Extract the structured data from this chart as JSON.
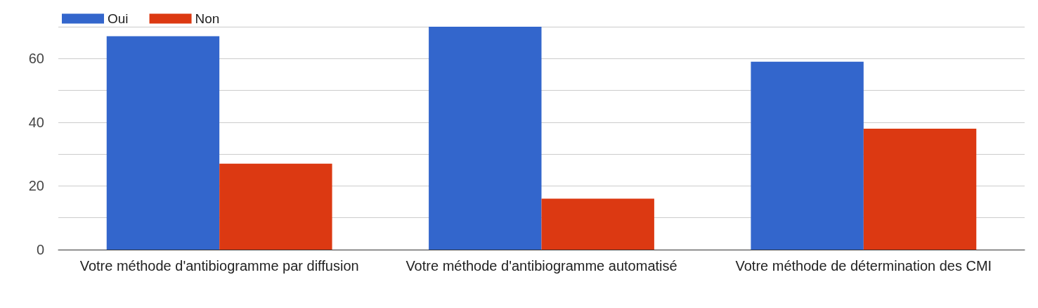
{
  "chart_data": {
    "type": "bar",
    "categories": [
      "Votre méthode d'antibiogramme par diffusion",
      "Votre méthode d'antibiogramme automatisé",
      "Votre méthode de détermination des CMI"
    ],
    "series": [
      {
        "name": "Oui",
        "color": "#3366cc",
        "values": [
          67,
          70,
          59
        ]
      },
      {
        "name": "Non",
        "color": "#dc3912",
        "values": [
          27,
          16,
          38
        ]
      }
    ],
    "ylim": [
      0,
      70
    ],
    "yticks": [
      0,
      {
        "value": 10,
        "label": null
      },
      20,
      {
        "value": 30,
        "label": null
      },
      40,
      {
        "value": 50,
        "label": null
      },
      60,
      {
        "value": 70,
        "label": null
      }
    ],
    "grid": "y",
    "legend": "top left"
  }
}
